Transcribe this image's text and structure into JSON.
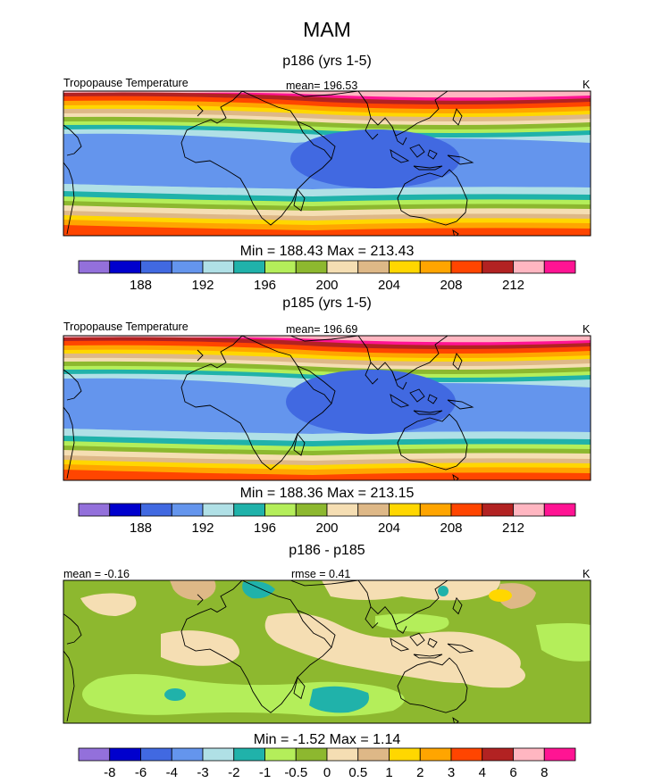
{
  "figure_title": "MAM",
  "chart_data": [
    {
      "type": "heatmap",
      "title": "p186 (yrs 1-5)",
      "field_label": "Tropopause Temperature",
      "mean_label": "mean= 196.53",
      "units": "K",
      "minmax_label": "Min = 188.43 Max = 213.43",
      "min": 188.43,
      "max": 213.43,
      "colorbar": {
        "colors": [
          "#9370db",
          "#0000cd",
          "#4169e1",
          "#6495ed",
          "#b0e0e6",
          "#20b2aa",
          "#b4ee5a",
          "#8db82f",
          "#f5deb3",
          "#deb887",
          "#ffd700",
          "#ffa500",
          "#ff4500",
          "#b22222",
          "#ffb6c1",
          "#ff1493"
        ],
        "tick_labels": [
          "188",
          "192",
          "196",
          "200",
          "204",
          "208",
          "212"
        ]
      }
    },
    {
      "type": "heatmap",
      "title": "p185 (yrs 1-5)",
      "field_label": "Tropopause Temperature",
      "mean_label": "mean= 196.69",
      "units": "K",
      "minmax_label": "Min = 188.36 Max = 213.15",
      "min": 188.36,
      "max": 213.15,
      "colorbar": {
        "colors": [
          "#9370db",
          "#0000cd",
          "#4169e1",
          "#6495ed",
          "#b0e0e6",
          "#20b2aa",
          "#b4ee5a",
          "#8db82f",
          "#f5deb3",
          "#deb887",
          "#ffd700",
          "#ffa500",
          "#ff4500",
          "#b22222",
          "#ffb6c1",
          "#ff1493"
        ],
        "tick_labels": [
          "188",
          "192",
          "196",
          "200",
          "204",
          "208",
          "212"
        ]
      }
    },
    {
      "type": "heatmap",
      "title": "p186 - p185",
      "mean_label": "mean =  -0.16",
      "rmse_label": "rmse =   0.41",
      "units": "K",
      "minmax_label": "Min =  -1.52 Max =   1.14",
      "min": -1.52,
      "max": 1.14,
      "colorbar": {
        "colors": [
          "#9370db",
          "#0000cd",
          "#4169e1",
          "#6495ed",
          "#b0e0e6",
          "#20b2aa",
          "#b4ee5a",
          "#8db82f",
          "#f5deb3",
          "#deb887",
          "#ffd700",
          "#ffa500",
          "#ff4500",
          "#b22222",
          "#ffb6c1",
          "#ff1493"
        ],
        "tick_labels": [
          "-8",
          "-6",
          "-4",
          "-3",
          "-2",
          "-1",
          "-0.5",
          "0",
          "0.5",
          "1",
          "2",
          "3",
          "4",
          "6",
          "8"
        ]
      }
    }
  ]
}
